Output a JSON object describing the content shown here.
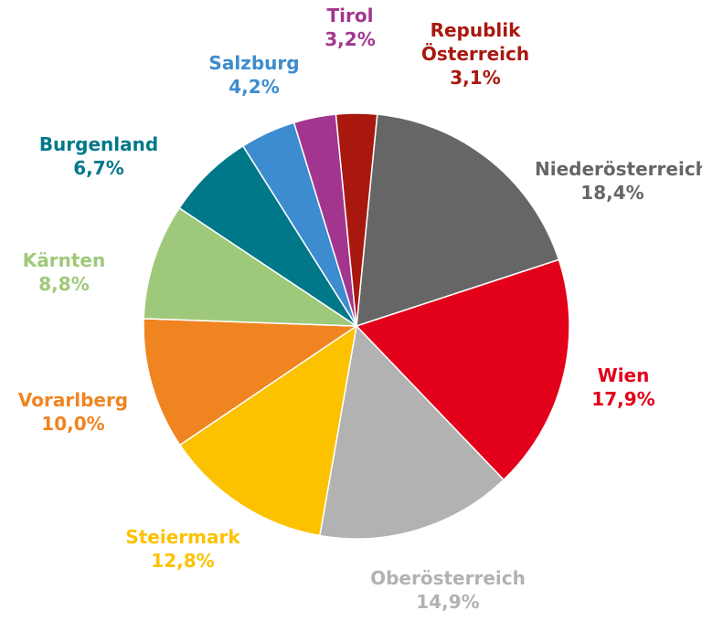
{
  "chart_data": {
    "type": "pie",
    "categories": [
      "Niederösterreich",
      "Wien",
      "Oberösterreich",
      "Steiermark",
      "Vorarlberg",
      "Kärnten",
      "Burgenland",
      "Salzburg",
      "Tirol",
      "Republik Österreich"
    ],
    "values": [
      18.4,
      17.9,
      14.9,
      12.8,
      10.0,
      8.8,
      6.7,
      4.2,
      3.2,
      3.1
    ],
    "value_labels": [
      "18,4%",
      "17,9%",
      "14,9%",
      "12,8%",
      "10,0%",
      "8,8%",
      "6,7%",
      "4,2%",
      "3,2%",
      "3,1%"
    ],
    "colors": [
      "#666666",
      "#e2001a",
      "#b2b2b2",
      "#fcc200",
      "#f08421",
      "#9fc97a",
      "#00788a",
      "#3d8ccf",
      "#a2368f",
      "#a8180f"
    ]
  }
}
